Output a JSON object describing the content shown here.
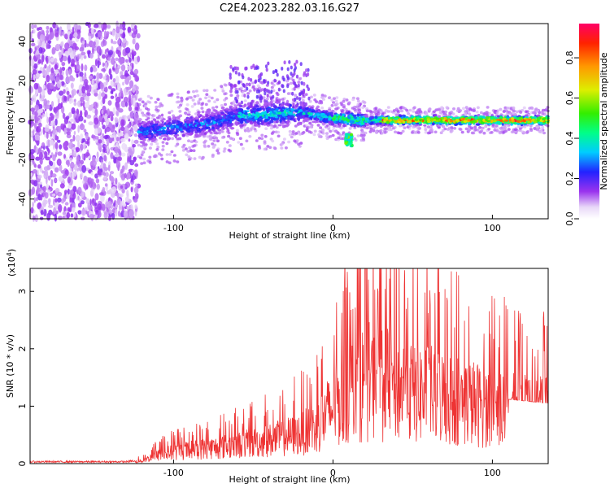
{
  "title": "C2E4.2023.282.03.16.G27",
  "chart_data": [
    {
      "type": "heatmap",
      "xlabel": "Height of straight line (km)",
      "ylabel": "Frequency (Hz)",
      "xlim": [
        -190,
        135
      ],
      "ylim": [
        -50,
        49
      ],
      "x_ticks": [
        -100,
        0,
        100
      ],
      "y_ticks": [
        -40,
        -20,
        0,
        20,
        40
      ],
      "colorbar": {
        "label": "Normalized spectral amplitude",
        "range": [
          0,
          0.97
        ],
        "ticks": [
          0.0,
          0.2,
          0.4,
          0.6,
          0.8
        ]
      },
      "features": [
        {
          "x_range": [
            -190,
            -122
          ],
          "description_values": {
            "y_range": [
              -50,
              49
            ],
            "amplitude": 0.15
          }
        },
        {
          "x_range": [
            -122,
            135
          ],
          "centerline_y": [
            [
              -122,
              -6
            ],
            [
              -100,
              -4
            ],
            [
              -80,
              -2
            ],
            [
              -60,
              2
            ],
            [
              -40,
              3
            ],
            [
              -20,
              4
            ],
            [
              0,
              1
            ],
            [
              20,
              0
            ],
            [
              60,
              0
            ],
            [
              100,
              0
            ],
            [
              135,
              0
            ]
          ],
          "amplitude_peak": 0.97
        },
        {
          "x": 10,
          "y": -10,
          "amplitude": 0.5
        }
      ]
    },
    {
      "type": "line",
      "xlabel": "Height of straight line (km)",
      "ylabel": "SNR (10 * v/v)",
      "y_multiplier_label": "(x10",
      "y_multiplier_exp": "4",
      "y_multiplier_close": ")",
      "xlim": [
        -190,
        135
      ],
      "ylim": [
        0,
        3.4
      ],
      "x_ticks": [
        -100,
        0,
        100
      ],
      "y_ticks": [
        0,
        1,
        2,
        3
      ],
      "series": [
        {
          "color": "#ee3333",
          "envelope": [
            [
              -190,
              0.04
            ],
            [
              -130,
              0.04
            ],
            [
              -120,
              0.08
            ],
            [
              -110,
              0.25
            ],
            [
              -100,
              0.35
            ],
            [
              -80,
              0.45
            ],
            [
              -60,
              0.55
            ],
            [
              -40,
              0.7
            ],
            [
              -20,
              0.9
            ],
            [
              -10,
              1.1
            ],
            [
              0,
              1.7
            ],
            [
              10,
              2.1
            ],
            [
              20,
              2.5
            ],
            [
              30,
              2.4
            ],
            [
              50,
              2.2
            ],
            [
              70,
              2.0
            ],
            [
              90,
              1.8
            ],
            [
              110,
              1.6
            ],
            [
              135,
              1.5
            ]
          ],
          "peak": {
            "x": 20,
            "y": 3.35
          }
        }
      ]
    }
  ]
}
